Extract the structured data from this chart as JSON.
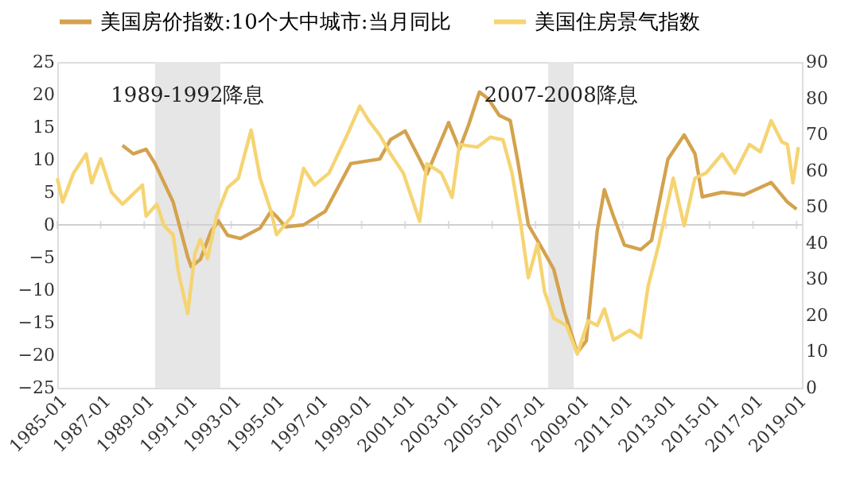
{
  "chart_data": {
    "type": "line",
    "xlim": [
      "1985-01",
      "2019-04"
    ],
    "xticks": [
      "1985-01",
      "1987-01",
      "1989-01",
      "1991-01",
      "1993-01",
      "1995-01",
      "1997-01",
      "1999-01",
      "2001-01",
      "2003-01",
      "2005-01",
      "2007-01",
      "2009-01",
      "2011-01",
      "2013-01",
      "2015-01",
      "2017-01",
      "2019-01"
    ],
    "ylim": [
      -25,
      25
    ],
    "yticks": [
      -25,
      -20,
      -15,
      -10,
      -5,
      0,
      5,
      10,
      15,
      20,
      25
    ],
    "y2lim": [
      0,
      90
    ],
    "y2ticks": [
      0,
      10,
      20,
      30,
      40,
      50,
      60,
      70,
      80,
      90
    ],
    "legend": "top",
    "grid": false,
    "ref_lines": [
      {
        "axis": "y",
        "value": 0,
        "color": "#d0d0d0"
      }
    ],
    "bands": [
      {
        "axis": "x",
        "from": "1989-07",
        "to": "1992-07",
        "label": "1989-1992降息",
        "color": "#e6e6e6"
      },
      {
        "axis": "x",
        "from": "2007-08",
        "to": "2008-10",
        "label": "2007-2008降息",
        "color": "#e6e6e6"
      }
    ],
    "series": [
      {
        "name": "美国房价指数:10个大中城市:当月同比",
        "color": "#d4a24e",
        "x": [
          "1988-01",
          "1988-07",
          "1989-02",
          "1989-07",
          "1990-05",
          "1991-01",
          "1991-03",
          "1991-08",
          "1992-02",
          "1992-06",
          "1992-11",
          "1993-06",
          "1994-05",
          "1994-11",
          "1995-02",
          "1995-07",
          "1996-05",
          "1997-05",
          "1998-07",
          "1999-11",
          "2000-05",
          "2001-01",
          "2001-09",
          "2002-01",
          "2003-01",
          "2003-07",
          "2003-12",
          "2004-06",
          "2004-11",
          "2005-05",
          "2005-11",
          "2006-03",
          "2006-09",
          "2007-05",
          "2007-11",
          "2008-05",
          "2008-12",
          "2009-05",
          "2009-11",
          "2010-03",
          "2010-08",
          "2011-02",
          "2011-11",
          "2012-05",
          "2013-02",
          "2013-11",
          "2014-05",
          "2014-09",
          "2015-08",
          "2016-08",
          "2017-11",
          "2018-08",
          "2019-01"
        ],
        "values": [
          12.2,
          10.9,
          11.6,
          9.4,
          3.5,
          -4.9,
          -6.4,
          -5.3,
          -0.9,
          0.6,
          -1.6,
          -2.1,
          -0.5,
          2.1,
          1.3,
          -0.3,
          0,
          2.1,
          9.4,
          10.1,
          13.1,
          14.4,
          10.1,
          7.8,
          15.7,
          11.6,
          15.3,
          20.4,
          19.3,
          16.8,
          16.0,
          10.1,
          0,
          -3.8,
          -6.8,
          -13.4,
          -19.6,
          -17.8,
          -0.9,
          5.4,
          1.3,
          -3.1,
          -3.8,
          -2.4,
          10.1,
          13.8,
          10.9,
          4.3,
          5.0,
          4.6,
          6.5,
          3.5,
          2.4
        ]
      },
      {
        "name": "美国住房景气指数",
        "color": "#f5d472",
        "axis": "y2",
        "x": [
          "1985-01",
          "1985-04",
          "1985-10",
          "1986-05",
          "1986-08",
          "1987-01",
          "1987-07",
          "1988-01",
          "1988-12",
          "1989-02",
          "1989-08",
          "1989-12",
          "1990-05",
          "1990-08",
          "1991-01",
          "1991-05",
          "1991-08",
          "1991-12",
          "1992-05",
          "1992-11",
          "1993-05",
          "1993-12",
          "1994-05",
          "1994-11",
          "1995-02",
          "1995-11",
          "1996-05",
          "1996-11",
          "1997-07",
          "1998-05",
          "1998-12",
          "1999-05",
          "1999-11",
          "2000-05",
          "2000-12",
          "2001-09",
          "2002-01",
          "2002-09",
          "2003-03",
          "2003-07",
          "2004-05",
          "2004-12",
          "2005-07",
          "2005-12",
          "2006-05",
          "2006-09",
          "2007-02",
          "2007-06",
          "2007-11",
          "2008-06",
          "2008-12",
          "2009-06",
          "2009-11",
          "2010-03",
          "2010-08",
          "2011-05",
          "2011-11",
          "2012-03",
          "2012-09",
          "2013-05",
          "2013-11",
          "2014-05",
          "2014-11",
          "2015-08",
          "2016-03",
          "2016-11",
          "2017-05",
          "2017-11",
          "2018-05",
          "2018-08",
          "2018-11",
          "2019-02"
        ],
        "values": [
          57.9,
          51.3,
          59.3,
          64.6,
          56.6,
          63.2,
          54.0,
          50.7,
          56.0,
          47.4,
          50.7,
          44.7,
          42.3,
          31.7,
          20.5,
          37.0,
          41.0,
          35.7,
          47.6,
          55.3,
          57.9,
          71.2,
          57.9,
          48.7,
          42.3,
          47.6,
          60.6,
          56.0,
          59.3,
          69.8,
          77.8,
          73.8,
          69.8,
          64.6,
          59.3,
          46.0,
          61.9,
          59.3,
          52.6,
          67.2,
          66.5,
          69.2,
          68.5,
          59.3,
          44.7,
          30.4,
          39.7,
          26.5,
          19.2,
          17.2,
          9.3,
          18.5,
          17.2,
          21.8,
          13.2,
          15.9,
          13.9,
          27.8,
          39.7,
          57.9,
          44.7,
          57.9,
          59.3,
          64.6,
          59.3,
          67.2,
          65.2,
          73.8,
          67.9,
          67.2,
          56.6,
          66.5
        ]
      }
    ]
  }
}
